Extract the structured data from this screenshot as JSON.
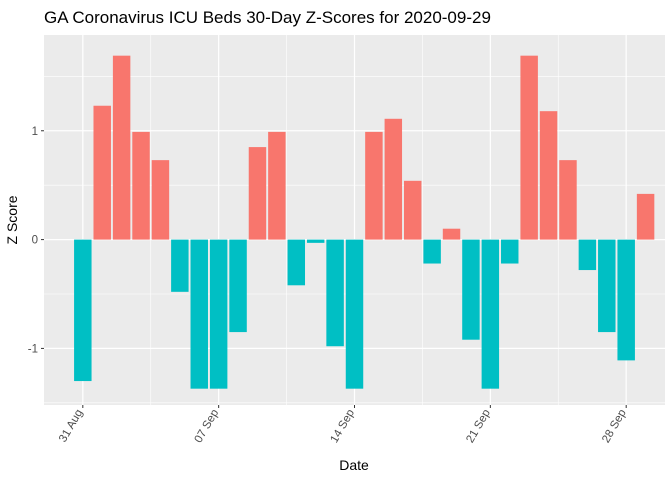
{
  "chart_data": {
    "type": "bar",
    "title": "GA Coronavirus ICU Beds 30-Day Z-Scores for 2020-09-29",
    "xlabel": "Date",
    "ylabel": "Z Score",
    "x": [
      "2020-08-31",
      "2020-09-01",
      "2020-09-02",
      "2020-09-03",
      "2020-09-04",
      "2020-09-05",
      "2020-09-06",
      "2020-09-07",
      "2020-09-08",
      "2020-09-09",
      "2020-09-10",
      "2020-09-11",
      "2020-09-12",
      "2020-09-13",
      "2020-09-14",
      "2020-09-15",
      "2020-09-16",
      "2020-09-17",
      "2020-09-18",
      "2020-09-19",
      "2020-09-20",
      "2020-09-21",
      "2020-09-22",
      "2020-09-23",
      "2020-09-24",
      "2020-09-25",
      "2020-09-26",
      "2020-09-27",
      "2020-09-28",
      "2020-09-29"
    ],
    "values": [
      -1.3,
      1.23,
      1.69,
      0.99,
      0.73,
      -0.48,
      -1.37,
      -1.37,
      -0.85,
      0.85,
      0.99,
      -0.42,
      -0.03,
      -0.98,
      -1.37,
      0.99,
      1.11,
      0.54,
      -0.22,
      0.1,
      -0.92,
      -1.37,
      -0.22,
      1.69,
      1.18,
      0.73,
      -0.28,
      -0.85,
      -1.11,
      0.42
    ],
    "xlim": [
      "2020-08-29",
      "2020-09-30"
    ],
    "ylim": [
      -1.52,
      1.88
    ],
    "x_ticks": [
      {
        "date": "2020-08-31",
        "label": "31 Aug"
      },
      {
        "date": "2020-09-07",
        "label": "07 Sep"
      },
      {
        "date": "2020-09-14",
        "label": "14 Sep"
      },
      {
        "date": "2020-09-21",
        "label": "21 Sep"
      },
      {
        "date": "2020-09-28",
        "label": "28 Sep"
      }
    ],
    "y_ticks": [
      {
        "value": -1,
        "label": "-1"
      },
      {
        "value": 0,
        "label": "0"
      },
      {
        "value": 1,
        "label": "1"
      }
    ],
    "grid": true,
    "legend": "none",
    "colors": {
      "positive": "#F8766D",
      "negative": "#00BFC4",
      "panel": "#EBEBEB",
      "grid": "#FFFFFF"
    }
  }
}
